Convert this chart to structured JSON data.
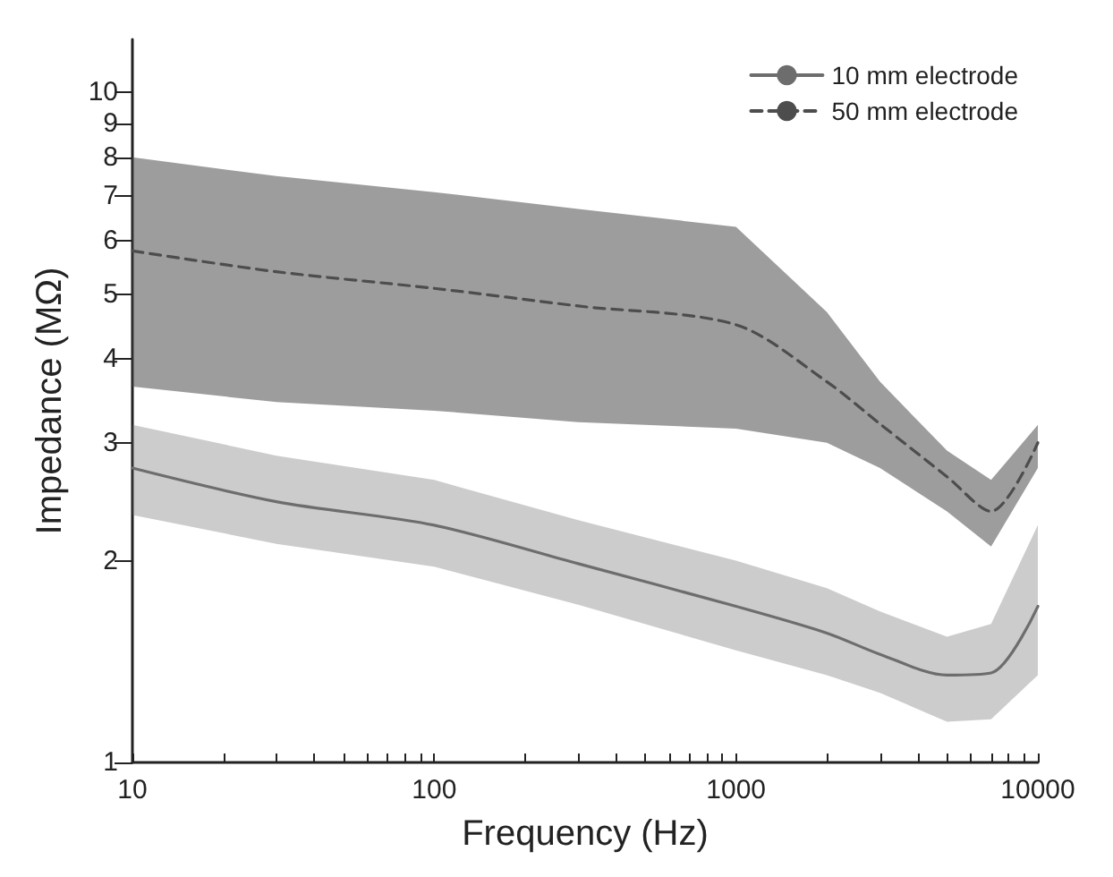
{
  "chart_data": {
    "type": "line",
    "xlabel": "Frequency (Hz)",
    "ylabel": "Impedance (MΩ)",
    "log": "xy",
    "grid": false,
    "legend": "top right",
    "xlim": [
      10,
      10000
    ],
    "ylim": [
      1,
      12
    ],
    "xticks": [
      10,
      {
        "value": 20,
        "label": null
      },
      {
        "value": 30,
        "label": null
      },
      {
        "value": 40,
        "label": null
      },
      {
        "value": 50,
        "label": null
      },
      {
        "value": 60,
        "label": null
      },
      {
        "value": 70,
        "label": null
      },
      {
        "value": 80,
        "label": null
      },
      {
        "value": 90,
        "label": null
      },
      100,
      {
        "value": 200,
        "label": null
      },
      {
        "value": 300,
        "label": null
      },
      {
        "value": 400,
        "label": null
      },
      {
        "value": 500,
        "label": null
      },
      {
        "value": 600,
        "label": null
      },
      {
        "value": 700,
        "label": null
      },
      {
        "value": 800,
        "label": null
      },
      {
        "value": 900,
        "label": null
      },
      1000,
      {
        "value": 2000,
        "label": null
      },
      {
        "value": 3000,
        "label": null
      },
      {
        "value": 4000,
        "label": null
      },
      {
        "value": 5000,
        "label": null
      },
      {
        "value": 6000,
        "label": null
      },
      {
        "value": 7000,
        "label": null
      },
      {
        "value": 8000,
        "label": null
      },
      {
        "value": 9000,
        "label": null
      },
      10000
    ],
    "yticks": [
      1,
      2,
      3,
      4,
      5,
      6,
      7,
      8,
      9,
      10
    ],
    "x": [
      10,
      30,
      100,
      300,
      1000,
      2000,
      3000,
      5000,
      7000,
      10000
    ],
    "series": [
      {
        "name": "10 mm electrode",
        "color": "#6d6d6d",
        "line_style": "solid",
        "values": [
          2.75,
          2.45,
          2.26,
          1.98,
          1.71,
          1.56,
          1.45,
          1.35,
          1.36,
          1.71
        ],
        "lower": [
          2.34,
          2.12,
          1.96,
          1.72,
          1.47,
          1.35,
          1.27,
          1.15,
          1.16,
          1.35
        ],
        "upper": [
          3.19,
          2.87,
          2.64,
          2.3,
          2.0,
          1.82,
          1.68,
          1.54,
          1.61,
          2.26
        ]
      },
      {
        "name": "50 mm electrode",
        "color": "#4d4d4d",
        "line_style": "dashed",
        "values": [
          5.8,
          5.4,
          5.1,
          4.8,
          4.5,
          3.7,
          3.2,
          2.67,
          2.37,
          3.0
        ],
        "lower": [
          3.64,
          3.45,
          3.35,
          3.22,
          3.15,
          3.0,
          2.75,
          2.37,
          2.1,
          2.75
        ],
        "upper": [
          8.0,
          7.5,
          7.1,
          6.7,
          6.3,
          4.7,
          3.7,
          2.92,
          2.64,
          3.19
        ]
      }
    ]
  }
}
